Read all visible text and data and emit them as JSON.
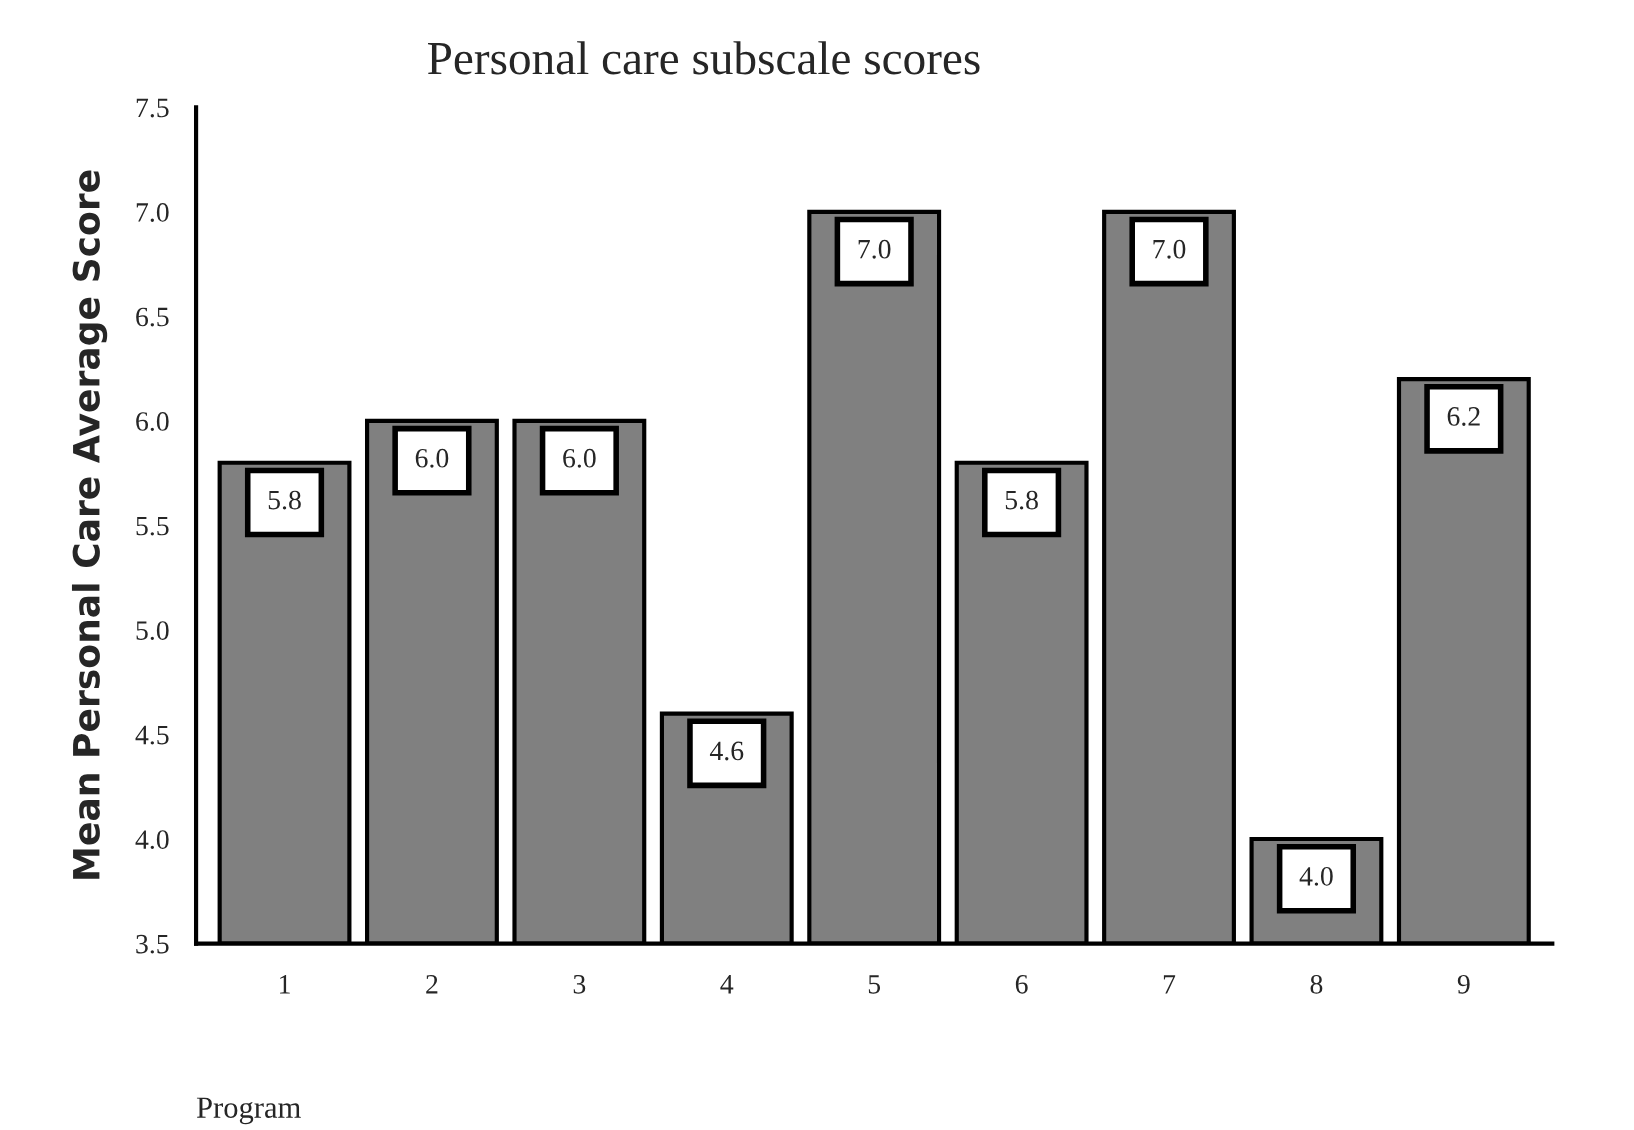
{
  "chart_data": {
    "type": "bar",
    "title": "Personal care subscale scores",
    "xlabel": "Program",
    "ylabel": "Mean Personal Care Average Score",
    "categories": [
      "1",
      "2",
      "3",
      "4",
      "5",
      "6",
      "7",
      "8",
      "9"
    ],
    "values": [
      5.8,
      6.0,
      6.0,
      4.6,
      7.0,
      5.8,
      7.0,
      4.0,
      6.2
    ],
    "value_labels": [
      "5.8",
      "6.0",
      "6.0",
      "4.6",
      "7.0",
      "5.8",
      "7.0",
      "4.0",
      "6.2"
    ],
    "color": "#808080",
    "ylim": [
      3.5,
      7.5
    ],
    "yticks": [
      {
        "value": 3.5,
        "label": "3.5"
      },
      {
        "value": 4.0,
        "label": "4.0"
      },
      {
        "value": 4.5,
        "label": "4.5"
      },
      {
        "value": 5.0,
        "label": "5.0"
      },
      {
        "value": 5.5,
        "label": "5.5"
      },
      {
        "value": 6.0,
        "label": "6.0"
      },
      {
        "value": 6.5,
        "label": "6.5"
      },
      {
        "value": 7.0,
        "label": "7.0"
      },
      {
        "value": 7.5,
        "label": "7.5"
      }
    ],
    "grid": false,
    "legend": false
  }
}
